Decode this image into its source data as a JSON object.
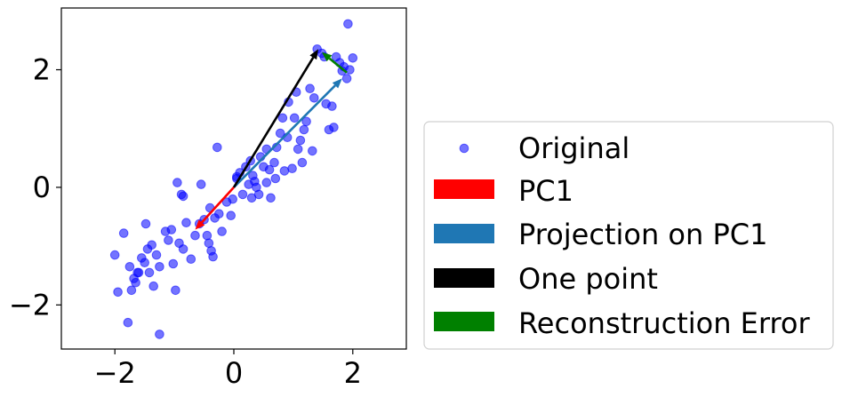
{
  "chart_data": {
    "type": "scatter",
    "title": "",
    "xlabel": "",
    "ylabel": "",
    "xlim": [
      -2.9,
      2.9
    ],
    "ylim": [
      -2.75,
      3.05
    ],
    "xticks": [
      -2,
      0,
      2
    ],
    "yticks": [
      -2,
      0,
      2
    ],
    "xtick_labels": [
      "−2",
      "0",
      "2"
    ],
    "ytick_labels": [
      "−2",
      "0",
      "2"
    ],
    "grid": false,
    "legend_position": "right",
    "series": [
      {
        "name": "Original",
        "color": "#0000ff",
        "kind": "scatter",
        "points": [
          [
            -1.95,
            -1.78
          ],
          [
            -1.78,
            -2.3
          ],
          [
            -1.72,
            -1.75
          ],
          [
            -1.68,
            -1.55
          ],
          [
            -1.6,
            -1.45
          ],
          [
            -1.55,
            -1.2
          ],
          [
            -1.5,
            -1.28
          ],
          [
            -1.45,
            -1.05
          ],
          [
            -1.42,
            -1.45
          ],
          [
            -1.35,
            -1.68
          ],
          [
            -1.3,
            -1.15
          ],
          [
            -1.25,
            -1.35
          ],
          [
            -1.15,
            -0.75
          ],
          [
            -1.1,
            -0.9
          ],
          [
            -1.02,
            -1.3
          ],
          [
            -0.98,
            -1.75
          ],
          [
            -0.92,
            -0.95
          ],
          [
            -0.85,
            -1.05
          ],
          [
            -0.8,
            -0.6
          ],
          [
            -0.72,
            -1.22
          ],
          [
            -0.65,
            -0.82
          ],
          [
            -0.58,
            -0.62
          ],
          [
            -0.5,
            -0.55
          ],
          [
            -0.42,
            -0.95
          ],
          [
            -0.38,
            -1.08
          ],
          [
            -0.35,
            -1.18
          ],
          [
            -0.32,
            -0.52
          ],
          [
            -0.25,
            -0.45
          ],
          [
            -0.2,
            -0.75
          ],
          [
            -0.12,
            -0.25
          ],
          [
            -0.05,
            -0.48
          ],
          [
            -0.02,
            -0.2
          ],
          [
            0.05,
            0.15
          ],
          [
            0.1,
            0.25
          ],
          [
            0.15,
            -0.12
          ],
          [
            0.2,
            0.35
          ],
          [
            0.25,
            0.05
          ],
          [
            0.28,
            0.45
          ],
          [
            0.32,
            0.2
          ],
          [
            0.38,
            0.0
          ],
          [
            0.42,
            -0.12
          ],
          [
            0.45,
            0.52
          ],
          [
            0.5,
            0.35
          ],
          [
            0.55,
            0.08
          ],
          [
            0.62,
            -0.18
          ],
          [
            0.68,
            0.42
          ],
          [
            0.72,
            0.68
          ],
          [
            0.78,
            0.92
          ],
          [
            0.85,
            0.28
          ],
          [
            0.9,
            0.85
          ],
          [
            0.92,
            1.45
          ],
          [
            0.98,
            0.32
          ],
          [
            1.02,
            1.18
          ],
          [
            1.08,
            0.65
          ],
          [
            1.12,
            0.8
          ],
          [
            1.18,
            0.98
          ],
          [
            1.22,
            1.12
          ],
          [
            1.28,
            1.68
          ],
          [
            1.35,
            1.52
          ],
          [
            1.4,
            2.35
          ],
          [
            1.48,
            2.28
          ],
          [
            1.55,
            1.42
          ],
          [
            1.6,
            0.98
          ],
          [
            1.65,
            1.38
          ],
          [
            1.72,
            2.22
          ],
          [
            1.78,
            2.12
          ],
          [
            1.85,
            2.05
          ],
          [
            1.9,
            1.85
          ],
          [
            1.95,
            2.0
          ],
          [
            2.0,
            2.2
          ],
          [
            1.92,
            2.78
          ],
          [
            -2.0,
            -1.15
          ],
          [
            -1.85,
            -0.78
          ],
          [
            -1.75,
            -1.35
          ],
          [
            -1.65,
            -1.62
          ],
          [
            -1.48,
            -0.62
          ],
          [
            -0.95,
            0.08
          ],
          [
            -0.85,
            -0.15
          ],
          [
            -0.55,
            0.05
          ],
          [
            -0.28,
            0.68
          ],
          [
            -0.4,
            -0.35
          ],
          [
            0.3,
            -0.18
          ],
          [
            0.55,
            0.65
          ],
          [
            0.7,
            0.15
          ],
          [
            0.82,
            1.18
          ],
          [
            1.05,
            1.62
          ],
          [
            1.15,
            0.42
          ],
          [
            1.32,
            0.62
          ],
          [
            1.52,
            2.22
          ],
          [
            1.68,
            1.02
          ],
          [
            -1.25,
            -2.5
          ],
          [
            -0.88,
            -0.12
          ],
          [
            -0.45,
            -0.82
          ],
          [
            0.05,
            0.18
          ],
          [
            0.35,
            0.1
          ],
          [
            -1.62,
            -1.45
          ],
          [
            -1.38,
            -0.98
          ],
          [
            -1.05,
            -0.72
          ],
          [
            1.82,
            1.98
          ],
          [
            0.6,
            0.3
          ]
        ]
      },
      {
        "name": "PC1",
        "color": "#ff0000",
        "kind": "arrow",
        "from": [
          0,
          0
        ],
        "to": [
          -0.65,
          -0.72
        ]
      },
      {
        "name": "Projection on PC1",
        "color": "#1f77b4",
        "kind": "arrow",
        "from": [
          0,
          0
        ],
        "to": [
          1.82,
          1.85
        ]
      },
      {
        "name": "One point",
        "color": "#000000",
        "kind": "arrow",
        "from": [
          0,
          0
        ],
        "to": [
          1.42,
          2.35
        ]
      },
      {
        "name": "Reconstruction Error",
        "color": "#008000",
        "kind": "arrow",
        "from": [
          1.9,
          1.95
        ],
        "to": [
          1.48,
          2.3
        ]
      }
    ]
  }
}
